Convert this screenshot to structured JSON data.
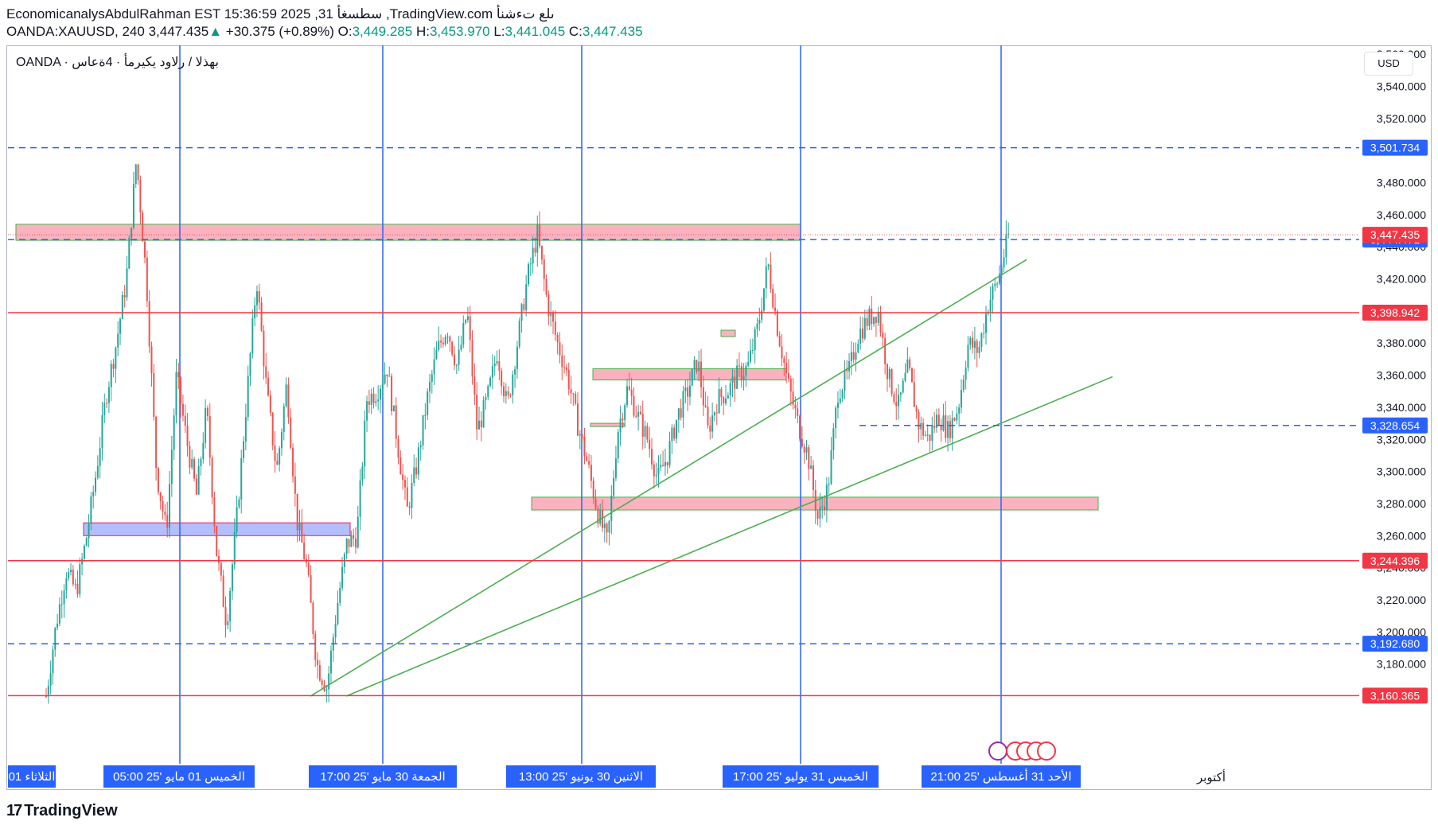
{
  "header": {
    "line1": "EconomicanalysAbdulRahman EST 15:36:59 2025 ,31 سطسغأ ,TradingView.com ىلع تءشنأ",
    "symbol": "OANDA:XAUUSD, 240",
    "last": "3,447.435",
    "change": "+30.375 (+0.89%)",
    "o_label": "O:",
    "o": "3,449.285",
    "h_label": "H:",
    "h": "3,453.970",
    "l_label": "L:",
    "l": "3,441.045",
    "c_label": "C:",
    "c": "3,447.435",
    "up_arrow": "▲"
  },
  "legend": "OANDA · بهذلا / رلاود يكيرمأ · 4ةعاس",
  "currency_button": "USD",
  "brand": {
    "logo": "17",
    "name": "TradingView"
  },
  "colors": {
    "candle_up": "#26a69a",
    "candle_down": "#ef5350",
    "blue_line": "#2962ff",
    "red_line": "#f23645",
    "trend_line": "#4caf50",
    "zone_fill": "#f8a5b3",
    "zone_fill_blue": "#a5b4fc"
  },
  "chart_data": {
    "type": "candlestick",
    "symbol": "OANDA:XAUUSD",
    "timeframe": "240",
    "ylim": [
      3140,
      3580
    ],
    "y_ticks": [
      3180,
      3200,
      3220,
      3240,
      3260,
      3280,
      3300,
      3320,
      3340,
      3360,
      3380,
      3400,
      3420,
      3440,
      3460,
      3480,
      3500,
      3520,
      3540,
      3560
    ],
    "y_tick_labels": [
      "3,180.000",
      "3,200.000",
      "3,220.000",
      "3,240.000",
      "3,260.000",
      "3,280.000",
      "3,300.000",
      "3,320.000",
      "3,340.000",
      "3,360.000",
      "3,380.000",
      "3,400.000",
      "3,420.000",
      "3,440.000",
      "3,460.000",
      "3,480.000",
      "3,500.000",
      "3,520.000",
      "3,540.000",
      "3,560.000"
    ],
    "horizontal_lines": [
      {
        "value": 3501.734,
        "label": "3,501.734",
        "style": "dashed",
        "color": "blue"
      },
      {
        "value": 3444.471,
        "label": "3,444.471",
        "style": "dashed",
        "color": "blue"
      },
      {
        "value": 3398.942,
        "label": "3,398.942",
        "style": "solid",
        "color": "red"
      },
      {
        "value": 3328.654,
        "label": "3,328.654",
        "style": "dashed",
        "color": "blue"
      },
      {
        "value": 3244.396,
        "label": "3,244.396",
        "style": "solid",
        "color": "red"
      },
      {
        "value": 3192.68,
        "label": "3,192.680",
        "style": "dashed",
        "color": "blue"
      },
      {
        "value": 3160.365,
        "label": "3,160.365",
        "style": "solid",
        "color": "red"
      }
    ],
    "last_price": {
      "value": 3447.435,
      "label": "3,447.435"
    },
    "x_labels": [
      "الثلاثاء 01",
      "الخميس 01 مايو '25   05:00",
      "الجمعة 30 مايو '25   17:00",
      "الاثنين 30 يونيو '25   13:00",
      "الخميس 31 يوليو '25   17:00",
      "الأحد 31 أغسطس '25   21:00",
      "أكتوبر"
    ],
    "vertical_markers": [
      "الخميس 01 مايو '25   05:00",
      "الجمعة 30 مايو '25   17:00",
      "الاثنين 30 يونيو '25   13:00",
      "الخميس 31 يوليو '25   17:00",
      "الأحد 31 أغسطس '25   21:00"
    ],
    "zones": [
      {
        "from": 3444,
        "to": 3454
      },
      {
        "from": 3357,
        "to": 3364
      },
      {
        "from": 3276,
        "to": 3284
      },
      {
        "from": 3260,
        "to": 3268
      },
      {
        "from": 3384,
        "to": 3388
      },
      {
        "from": 3328,
        "to": 3330
      }
    ],
    "trend_lines": [
      {
        "from_price": 3160,
        "to_price": 3432
      },
      {
        "from_price": 3160,
        "to_price": 3359
      }
    ],
    "close_path": [
      3160,
      3205,
      3238,
      3225,
      3258,
      3300,
      3348,
      3380,
      3420,
      3495,
      3420,
      3300,
      3262,
      3360,
      3320,
      3285,
      3340,
      3250,
      3205,
      3270,
      3345,
      3420,
      3350,
      3300,
      3355,
      3270,
      3240,
      3180,
      3165,
      3215,
      3255,
      3260,
      3345,
      3350,
      3365,
      3320,
      3275,
      3305,
      3345,
      3375,
      3390,
      3365,
      3400,
      3325,
      3345,
      3375,
      3340,
      3380,
      3420,
      3448,
      3405,
      3380,
      3360,
      3330,
      3305,
      3275,
      3255,
      3325,
      3352,
      3335,
      3320,
      3295,
      3310,
      3335,
      3350,
      3370,
      3325,
      3345,
      3350,
      3360,
      3365,
      3390,
      3430,
      3388,
      3355,
      3330,
      3310,
      3270,
      3290,
      3350,
      3360,
      3385,
      3395,
      3400,
      3360,
      3340,
      3365,
      3330,
      3320,
      3335,
      3325,
      3340,
      3380,
      3375,
      3405,
      3420,
      3447
    ]
  }
}
